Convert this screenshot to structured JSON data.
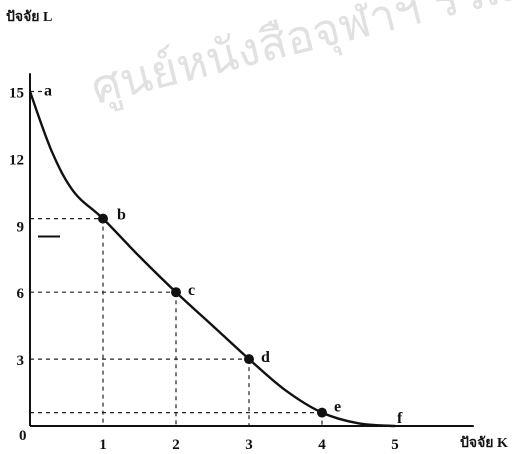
{
  "chart_data": {
    "type": "line",
    "title": "",
    "xlabel": "ปัจจัย K",
    "ylabel": "ปัจจัย L",
    "xlim": [
      0,
      5.6
    ],
    "ylim": [
      0,
      16
    ],
    "x_ticks": [
      "1",
      "2",
      "3",
      "4",
      "5"
    ],
    "y_ticks": [
      "3",
      "6",
      "9",
      "12",
      "15"
    ],
    "origin_label": "0",
    "curve": [
      [
        0,
        15
      ],
      [
        0.3,
        12.3
      ],
      [
        0.6,
        10.5
      ],
      [
        1,
        9.3
      ],
      [
        1.5,
        7.6
      ],
      [
        2,
        6.0
      ],
      [
        2.5,
        4.5
      ],
      [
        3,
        3.0
      ],
      [
        3.5,
        1.6
      ],
      [
        4,
        0.6
      ],
      [
        4.5,
        0.12
      ],
      [
        5,
        0
      ]
    ],
    "points": [
      {
        "label": "a",
        "x": 0,
        "y": 15,
        "marker": false
      },
      {
        "label": "b",
        "x": 1,
        "y": 9.3,
        "marker": true
      },
      {
        "label": "c",
        "x": 2,
        "y": 6,
        "marker": true
      },
      {
        "label": "d",
        "x": 3,
        "y": 3,
        "marker": true
      },
      {
        "label": "e",
        "x": 4,
        "y": 0.6,
        "marker": true
      },
      {
        "label": "f",
        "x": 5,
        "y": 0,
        "marker": false
      }
    ],
    "extra_mark_y": 8.5,
    "watermark": "ศูนย์หนังสือจุฬาฯ รวมเกล้าเจ้าคุณ"
  }
}
